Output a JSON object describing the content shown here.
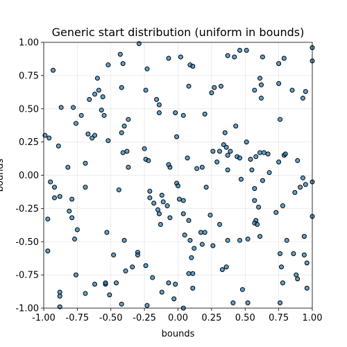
{
  "chart_data": {
    "type": "scatter",
    "title": "Generic start distribution (uniform in bounds)",
    "xlabel": "bounds",
    "ylabel": "bounds",
    "xlim": [
      -1.0,
      1.0
    ],
    "ylim": [
      -1.0,
      1.0
    ],
    "xticks": [
      "-1.00",
      "-0.75",
      "-0.50",
      "-0.25",
      "0.00",
      "0.25",
      "0.50",
      "0.75",
      "1.00"
    ],
    "yticks": [
      "-1.00",
      "-0.75",
      "-0.50",
      "-0.25",
      "0.00",
      "0.25",
      "0.50",
      "0.75",
      "1.00"
    ],
    "tick_values": [
      -1.0,
      -0.75,
      -0.5,
      -0.25,
      0.0,
      0.25,
      0.5,
      0.75,
      1.0
    ],
    "grid": true,
    "marker_color": "#1f77b4",
    "points": [
      [
        -0.93,
        0.79
      ],
      [
        -0.87,
        0.51
      ],
      [
        -0.78,
        0.51
      ],
      [
        -0.76,
        0.39
      ],
      [
        -0.72,
        0.45
      ],
      [
        -0.67,
        0.31
      ],
      [
        -0.64,
        0.28
      ],
      [
        -0.6,
        0.73
      ],
      [
        -0.59,
        0.64
      ],
      [
        -0.62,
        0.61
      ],
      [
        -0.66,
        0.57
      ],
      [
        -0.57,
        0.49
      ],
      [
        -0.55,
        0.45
      ],
      [
        -0.56,
        0.59
      ],
      [
        -0.52,
        0.83
      ],
      [
        -0.43,
        0.91
      ],
      [
        -0.41,
        0.84
      ],
      [
        -0.42,
        0.66
      ],
      [
        -0.37,
        0.42
      ],
      [
        -0.42,
        0.32
      ],
      [
        -0.4,
        0.37
      ],
      [
        -0.41,
        0.17
      ],
      [
        -0.38,
        0.18
      ],
      [
        -0.37,
        0.06
      ],
      [
        -0.29,
        0.99
      ],
      [
        -0.23,
        0.8
      ],
      [
        -0.24,
        0.64
      ],
      [
        -0.16,
        0.57
      ],
      [
        -0.14,
        0.53
      ],
      [
        -0.14,
        0.47
      ],
      [
        -0.07,
        0.88
      ],
      [
        -0.02,
        0.47
      ],
      [
        0.02,
        0.89
      ],
      [
        0.04,
        0.45
      ],
      [
        0.09,
        0.83
      ],
      [
        0.11,
        0.82
      ],
      [
        0.08,
        0.67
      ],
      [
        0.2,
        0.46
      ],
      [
        0.25,
        0.62
      ],
      [
        0.27,
        0.66
      ],
      [
        0.32,
        0.67
      ],
      [
        0.37,
        0.9
      ],
      [
        0.42,
        0.89
      ],
      [
        0.46,
        0.94
      ],
      [
        0.51,
        0.94
      ],
      [
        0.57,
        0.64
      ],
      [
        0.62,
        0.58
      ],
      [
        0.63,
        0.89
      ],
      [
        0.61,
        0.73
      ],
      [
        0.62,
        0.68
      ],
      [
        0.75,
        0.84
      ],
      [
        0.79,
        0.88
      ],
      [
        0.75,
        0.69
      ],
      [
        0.85,
        0.64
      ],
      [
        0.93,
        0.58
      ],
      [
        1.0,
        0.96
      ],
      [
        1.0,
        0.86
      ],
      [
        0.95,
        0.63
      ],
      [
        -0.99,
        0.3
      ],
      [
        -0.96,
        0.28
      ],
      [
        -0.89,
        0.22
      ],
      [
        -0.82,
        0.06
      ],
      [
        -0.69,
        0.09
      ],
      [
        -0.62,
        0.3
      ],
      [
        -0.52,
        0.26
      ],
      [
        -0.69,
        -0.09
      ],
      [
        -0.79,
        -0.18
      ],
      [
        -0.88,
        -0.16
      ],
      [
        -0.92,
        -0.17
      ],
      [
        -0.95,
        -0.05
      ],
      [
        -0.92,
        -0.09
      ],
      [
        -0.81,
        -0.27
      ],
      [
        -0.79,
        -0.32
      ],
      [
        -0.77,
        -0.48
      ],
      [
        -0.75,
        -0.41
      ],
      [
        -0.97,
        -0.33
      ],
      [
        -0.97,
        -0.57
      ],
      [
        -0.53,
        -0.43
      ],
      [
        -0.44,
        -0.11
      ],
      [
        -0.25,
        0.2
      ],
      [
        -0.24,
        0.12
      ],
      [
        -0.22,
        0.11
      ],
      [
        -0.21,
        -0.12
      ],
      [
        -0.21,
        -0.17
      ],
      [
        -0.18,
        -0.21
      ],
      [
        -0.15,
        -0.26
      ],
      [
        -0.14,
        -0.29
      ],
      [
        -0.12,
        -0.15
      ],
      [
        -0.11,
        -0.2
      ],
      [
        -0.08,
        -0.23
      ],
      [
        -0.06,
        0.06
      ],
      [
        -0.07,
        0.08
      ],
      [
        -0.01,
        0.29
      ],
      [
        -0.01,
        -0.06
      ],
      [
        0.0,
        -0.08
      ],
      [
        0.01,
        -0.18
      ],
      [
        0.04,
        -0.19
      ],
      [
        -0.13,
        -0.37
      ],
      [
        -0.06,
        -0.32
      ],
      [
        0.04,
        -0.29
      ],
      [
        0.08,
        -0.34
      ],
      [
        0.07,
        0.13
      ],
      [
        0.14,
        0.05
      ],
      [
        0.18,
        0.06
      ],
      [
        0.21,
        -0.09
      ],
      [
        0.26,
        0.18
      ],
      [
        0.29,
        0.1
      ],
      [
        0.31,
        0.18
      ],
      [
        0.34,
        0.23
      ],
      [
        0.36,
        0.21
      ],
      [
        0.35,
        0.32
      ],
      [
        0.37,
        0.15
      ],
      [
        0.39,
        0.18
      ],
      [
        0.43,
        0.37
      ],
      [
        0.44,
        0.14
      ],
      [
        0.46,
        0.13
      ],
      [
        0.51,
        0.25
      ],
      [
        0.37,
        0.04
      ],
      [
        0.47,
        -0.03
      ],
      [
        0.54,
        0.12
      ],
      [
        0.55,
        0.04
      ],
      [
        0.58,
        0.14
      ],
      [
        0.61,
        0.17
      ],
      [
        0.64,
        0.17
      ],
      [
        0.68,
        0.02
      ],
      [
        0.67,
        0.16
      ],
      [
        0.75,
        0.1
      ],
      [
        0.76,
        0.42
      ],
      [
        0.79,
        0.15
      ],
      [
        0.8,
        0.16
      ],
      [
        0.89,
        0.11
      ],
      [
        0.93,
        -0.02
      ],
      [
        0.95,
        -0.07
      ],
      [
        0.91,
        -0.09
      ],
      [
        0.87,
        -0.13
      ],
      [
        1.0,
        -0.05
      ],
      [
        1.0,
        -0.31
      ],
      [
        0.78,
        -0.23
      ],
      [
        0.73,
        -0.28
      ],
      [
        0.6,
        -0.24
      ],
      [
        0.57,
        -0.19
      ],
      [
        0.57,
        -0.1
      ],
      [
        0.63,
        -0.04
      ],
      [
        0.58,
        -0.34
      ],
      [
        0.57,
        -0.36
      ],
      [
        0.59,
        -0.37
      ],
      [
        0.52,
        -0.48
      ],
      [
        0.61,
        -0.46
      ],
      [
        0.46,
        -0.49
      ],
      [
        0.37,
        -0.49
      ],
      [
        0.31,
        -0.37
      ],
      [
        0.24,
        -0.3
      ],
      [
        0.2,
        -0.43
      ],
      [
        0.17,
        -0.43
      ],
      [
        0.18,
        -0.52
      ],
      [
        0.26,
        -0.53
      ],
      [
        0.33,
        -0.71
      ],
      [
        0.36,
        -0.69
      ],
      [
        0.09,
        -0.49
      ],
      [
        0.05,
        -0.45
      ],
      [
        0.12,
        -0.55
      ],
      [
        0.1,
        -0.62
      ],
      [
        0.08,
        -0.74
      ],
      [
        0.11,
        -0.74
      ],
      [
        0.11,
        -0.85
      ],
      [
        -0.02,
        -0.82
      ],
      [
        -0.07,
        -0.81
      ],
      [
        -0.12,
        -0.88
      ],
      [
        -0.19,
        -0.77
      ],
      [
        -0.24,
        -0.68
      ],
      [
        -0.3,
        -0.58
      ],
      [
        -0.3,
        -0.6
      ],
      [
        -0.4,
        -0.49
      ],
      [
        -0.39,
        -0.72
      ],
      [
        -0.34,
        -0.69
      ],
      [
        -0.46,
        -0.81
      ],
      [
        -0.48,
        -0.6
      ],
      [
        -0.51,
        -0.9
      ],
      [
        -0.54,
        -0.82
      ],
      [
        -0.54,
        -0.81
      ],
      [
        -0.62,
        -0.82
      ],
      [
        -0.69,
        -0.89
      ],
      [
        -0.76,
        -0.75
      ],
      [
        -0.88,
        -0.88
      ],
      [
        -0.88,
        -0.91
      ],
      [
        -0.88,
        -0.99
      ],
      [
        -0.42,
        -0.97
      ],
      [
        -0.23,
        -0.98
      ],
      [
        -0.03,
        -0.93
      ],
      [
        0.04,
        -1.0
      ],
      [
        0.48,
        -0.86
      ],
      [
        0.52,
        -0.96
      ],
      [
        0.76,
        -0.96
      ],
      [
        0.78,
        -0.81
      ],
      [
        0.77,
        -0.69
      ],
      [
        0.76,
        -0.59
      ],
      [
        0.86,
        -0.59
      ],
      [
        0.88,
        -0.75
      ],
      [
        0.89,
        -0.78
      ],
      [
        0.96,
        -0.85
      ],
      [
        0.94,
        -0.6
      ],
      [
        0.94,
        -0.46
      ],
      [
        0.96,
        -0.66
      ],
      [
        0.81,
        -0.49
      ],
      [
        0.41,
        -0.96
      ]
    ]
  }
}
